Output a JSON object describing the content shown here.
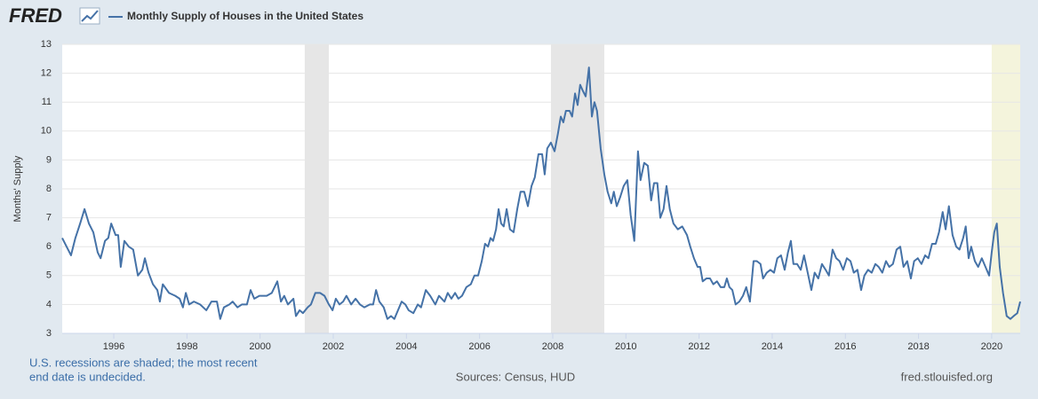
{
  "chart_data": {
    "type": "line",
    "brand": "FRED",
    "ylabel": "Months' Supply",
    "note": [
      "U.S. recessions are shaded; the most recent",
      "end date is undecided."
    ],
    "source": "Sources: Census, HUD",
    "site": "fred.stlouisfed.org",
    "xlim": [
      1994.59,
      2020.78
    ],
    "xticks": [
      1996,
      1998,
      2000,
      2002,
      2004,
      2006,
      2008,
      2010,
      2012,
      2014,
      2016,
      2018,
      2020
    ],
    "ylim": [
      3,
      13
    ],
    "yticks": [
      3,
      4,
      5,
      6,
      7,
      8,
      9,
      10,
      11,
      12,
      13
    ],
    "grid": true,
    "recession_color": "#e6e6e6",
    "recent_recession_color": "#f4f4dc",
    "recessions": [
      [
        2001.22,
        2001.88
      ],
      [
        2007.95,
        2009.41
      ],
      [
        2020.0,
        2020.78
      ]
    ],
    "x": [
      1994.59,
      1994.71,
      1994.83,
      1994.95,
      1995.08,
      1995.2,
      1995.32,
      1995.44,
      1995.56,
      1995.64,
      1995.76,
      1995.85,
      1995.93,
      1996.05,
      1996.12,
      1996.19,
      1996.29,
      1996.41,
      1996.53,
      1996.66,
      1996.78,
      1996.85,
      1996.95,
      1997.07,
      1997.19,
      1997.26,
      1997.34,
      1997.51,
      1997.68,
      1997.8,
      1997.89,
      1997.97,
      1998.06,
      1998.19,
      1998.36,
      1998.53,
      1998.67,
      1998.82,
      1998.91,
      1999.01,
      1999.16,
      1999.25,
      1999.38,
      1999.5,
      1999.64,
      1999.74,
      1999.84,
      1999.98,
      2000.18,
      2000.32,
      2000.47,
      2000.57,
      2000.66,
      2000.76,
      2000.91,
      2000.98,
      2001.08,
      2001.17,
      2001.3,
      2001.39,
      2001.51,
      2001.64,
      2001.76,
      2001.88,
      2001.98,
      2002.07,
      2002.17,
      2002.27,
      2002.36,
      2002.49,
      2002.61,
      2002.73,
      2002.85,
      2003.0,
      2003.09,
      2003.17,
      2003.26,
      2003.38,
      2003.48,
      2003.58,
      2003.67,
      2003.77,
      2003.87,
      2003.97,
      2004.06,
      2004.19,
      2004.31,
      2004.4,
      2004.53,
      2004.65,
      2004.79,
      2004.89,
      2005.04,
      2005.13,
      2005.23,
      2005.33,
      2005.42,
      2005.52,
      2005.64,
      2005.76,
      2005.86,
      2005.96,
      2006.06,
      2006.15,
      2006.23,
      2006.3,
      2006.37,
      2006.45,
      2006.52,
      2006.59,
      2006.66,
      2006.74,
      2006.83,
      2006.93,
      2007.03,
      2007.12,
      2007.22,
      2007.32,
      2007.42,
      2007.51,
      2007.61,
      2007.71,
      2007.78,
      2007.85,
      2007.95,
      2008.05,
      2008.14,
      2008.22,
      2008.29,
      2008.36,
      2008.46,
      2008.53,
      2008.61,
      2008.68,
      2008.75,
      2008.82,
      2008.9,
      2008.99,
      2009.07,
      2009.14,
      2009.21,
      2009.31,
      2009.41,
      2009.5,
      2009.6,
      2009.67,
      2009.75,
      2009.84,
      2009.94,
      2010.04,
      2010.13,
      2010.23,
      2010.33,
      2010.4,
      2010.5,
      2010.6,
      2010.69,
      2010.77,
      2010.86,
      2010.94,
      2011.03,
      2011.11,
      2011.2,
      2011.3,
      2011.42,
      2011.54,
      2011.67,
      2011.76,
      2011.86,
      2011.96,
      2012.03,
      2012.1,
      2012.2,
      2012.3,
      2012.39,
      2012.49,
      2012.59,
      2012.69,
      2012.76,
      2012.83,
      2012.91,
      2013.0,
      2013.1,
      2013.2,
      2013.29,
      2013.39,
      2013.49,
      2013.58,
      2013.68,
      2013.75,
      2013.85,
      2013.95,
      2014.05,
      2014.14,
      2014.24,
      2014.34,
      2014.43,
      2014.51,
      2014.58,
      2014.68,
      2014.78,
      2014.87,
      2014.97,
      2015.07,
      2015.16,
      2015.26,
      2015.36,
      2015.46,
      2015.55,
      2015.65,
      2015.75,
      2015.84,
      2015.94,
      2016.04,
      2016.14,
      2016.23,
      2016.33,
      2016.43,
      2016.52,
      2016.62,
      2016.72,
      2016.82,
      2016.91,
      2017.01,
      2017.11,
      2017.2,
      2017.3,
      2017.4,
      2017.5,
      2017.59,
      2017.69,
      2017.79,
      2017.88,
      2017.98,
      2018.08,
      2018.18,
      2018.27,
      2018.37,
      2018.47,
      2018.56,
      2018.66,
      2018.74,
      2018.83,
      2018.93,
      2019.03,
      2019.12,
      2019.22,
      2019.29,
      2019.37,
      2019.44,
      2019.54,
      2019.63,
      2019.73,
      2019.83,
      2019.93,
      2020.0,
      2020.07,
      2020.14,
      2020.22,
      2020.31,
      2020.41,
      2020.51,
      2020.6,
      2020.7,
      2020.78
    ],
    "series": [
      {
        "name": "Monthly Supply of Houses in the United States",
        "color": "#4572a7",
        "values": [
          6.3,
          6.0,
          5.7,
          6.3,
          6.8,
          7.3,
          6.8,
          6.5,
          5.8,
          5.6,
          6.2,
          6.3,
          6.8,
          6.4,
          6.4,
          5.3,
          6.2,
          6.0,
          5.9,
          5.0,
          5.2,
          5.6,
          5.1,
          4.7,
          4.5,
          4.1,
          4.7,
          4.4,
          4.3,
          4.2,
          3.9,
          4.4,
          4.0,
          4.1,
          4.0,
          3.8,
          4.1,
          4.1,
          3.5,
          3.9,
          4.0,
          4.1,
          3.9,
          4.0,
          4.0,
          4.5,
          4.2,
          4.3,
          4.3,
          4.4,
          4.8,
          4.1,
          4.3,
          4.0,
          4.2,
          3.6,
          3.8,
          3.7,
          3.9,
          4.0,
          4.4,
          4.4,
          4.3,
          4.0,
          3.8,
          4.2,
          4.0,
          4.1,
          4.3,
          4.0,
          4.2,
          4.0,
          3.9,
          4.0,
          4.0,
          4.5,
          4.1,
          3.9,
          3.5,
          3.6,
          3.5,
          3.8,
          4.1,
          4.0,
          3.8,
          3.7,
          4.0,
          3.9,
          4.5,
          4.3,
          4.0,
          4.3,
          4.1,
          4.4,
          4.2,
          4.4,
          4.2,
          4.3,
          4.6,
          4.7,
          5.0,
          5.0,
          5.5,
          6.1,
          6.0,
          6.3,
          6.2,
          6.6,
          7.3,
          6.8,
          6.7,
          7.3,
          6.6,
          6.5,
          7.3,
          7.9,
          7.9,
          7.4,
          8.1,
          8.4,
          9.2,
          9.2,
          8.5,
          9.4,
          9.6,
          9.3,
          9.9,
          10.5,
          10.3,
          10.7,
          10.7,
          10.5,
          11.3,
          10.9,
          11.6,
          11.4,
          11.2,
          12.2,
          10.5,
          11.0,
          10.7,
          9.4,
          8.5,
          7.9,
          7.5,
          7.9,
          7.4,
          7.7,
          8.1,
          8.3,
          7.1,
          6.2,
          9.3,
          8.3,
          8.9,
          8.8,
          7.6,
          8.2,
          8.2,
          7.0,
          7.3,
          8.1,
          7.3,
          6.8,
          6.6,
          6.7,
          6.4,
          6.0,
          5.6,
          5.3,
          5.3,
          4.8,
          4.9,
          4.9,
          4.7,
          4.8,
          4.6,
          4.6,
          4.9,
          4.6,
          4.5,
          4.0,
          4.1,
          4.3,
          4.6,
          4.1,
          5.5,
          5.5,
          5.4,
          4.9,
          5.1,
          5.2,
          5.1,
          5.6,
          5.7,
          5.2,
          5.8,
          6.2,
          5.4,
          5.4,
          5.2,
          5.7,
          5.1,
          4.5,
          5.1,
          4.9,
          5.4,
          5.2,
          5.0,
          5.9,
          5.6,
          5.5,
          5.2,
          5.6,
          5.5,
          5.1,
          5.2,
          4.5,
          5.0,
          5.2,
          5.1,
          5.4,
          5.3,
          5.1,
          5.5,
          5.3,
          5.4,
          5.9,
          6.0,
          5.3,
          5.5,
          4.9,
          5.5,
          5.6,
          5.4,
          5.7,
          5.6,
          6.1,
          6.1,
          6.5,
          7.2,
          6.6,
          7.4,
          6.4,
          6.0,
          5.9,
          6.3,
          6.7,
          5.6,
          6.0,
          5.5,
          5.3,
          5.6,
          5.3,
          5.0,
          5.8,
          6.5,
          6.8,
          5.3,
          4.4,
          3.6,
          3.5,
          3.6,
          3.7,
          4.1
        ]
      }
    ]
  }
}
